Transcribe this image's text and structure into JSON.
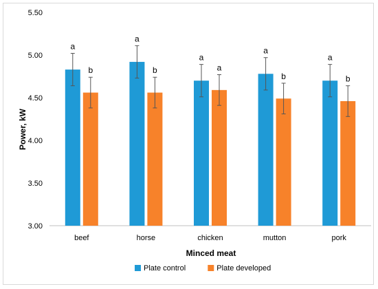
{
  "chart_data": {
    "type": "bar",
    "title": "",
    "xlabel": "Minced meat",
    "ylabel": "Power, kW",
    "ylim": [
      3.0,
      5.5
    ],
    "yticks": [
      "3.00",
      "3.50",
      "4.00",
      "4.50",
      "5.00",
      "5.50"
    ],
    "grid": false,
    "legend_position": "bottom",
    "categories": [
      "beef",
      "horse",
      "chicken",
      "mutton",
      "pork"
    ],
    "series": [
      {
        "name": "Plate control",
        "color": "#1f9ad6",
        "values": [
          4.83,
          4.92,
          4.7,
          4.78,
          4.7
        ],
        "errors": [
          0.19,
          0.19,
          0.19,
          0.19,
          0.19
        ],
        "labels": [
          "a",
          "a",
          "a",
          "a",
          "a"
        ]
      },
      {
        "name": "Plate developed",
        "color": "#f7822a",
        "values": [
          4.56,
          4.56,
          4.59,
          4.49,
          4.46
        ],
        "errors": [
          0.18,
          0.18,
          0.18,
          0.18,
          0.18
        ],
        "labels": [
          "b",
          "b",
          "a",
          "b",
          "b"
        ]
      }
    ]
  }
}
